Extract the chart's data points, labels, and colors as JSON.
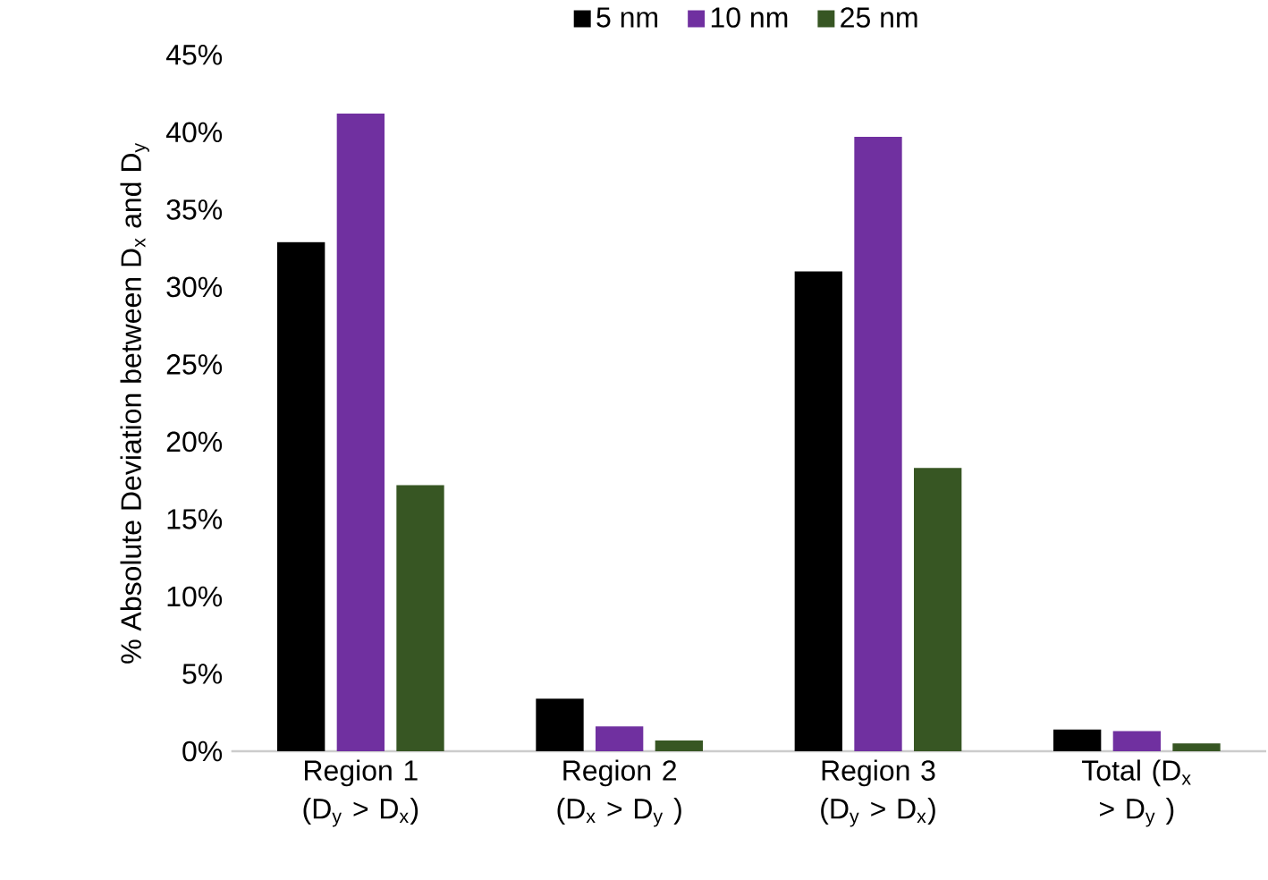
{
  "chart_data": {
    "type": "bar",
    "ylabel": "% Absolute Deviation between D$_{x}$ and D$_{y}$",
    "categories": [
      "Region 1 (D$_{y}$ > D$_{x}$)",
      "Region 2 (D$_{x}$ > D$_{y}$ )",
      "Region 3 (D$_{y}$ > D$_{x}$)",
      "Total (D$_{x}$ > D$_{y}$ )"
    ],
    "series": [
      {
        "name": "5 nm",
        "color": "#000000",
        "values": [
          32.9,
          3.4,
          31.0,
          1.4
        ]
      },
      {
        "name": "10 nm",
        "color": "#7030a0",
        "values": [
          41.2,
          1.6,
          39.7,
          1.3
        ]
      },
      {
        "name": "25 nm",
        "color": "#375623",
        "values": [
          17.2,
          0.7,
          18.3,
          0.5
        ]
      }
    ],
    "ylim": [
      0,
      45
    ],
    "yticks": [
      {
        "value": 0,
        "label": "0%"
      },
      {
        "value": 5,
        "label": "5%"
      },
      {
        "value": 10,
        "label": "10%"
      },
      {
        "value": 15,
        "label": "15%"
      },
      {
        "value": 20,
        "label": "20%"
      },
      {
        "value": 25,
        "label": "25%"
      },
      {
        "value": 30,
        "label": "30%"
      },
      {
        "value": 35,
        "label": "35%"
      },
      {
        "value": 40,
        "label": "40%"
      },
      {
        "value": 45,
        "label": "45%"
      }
    ],
    "grid": false,
    "legend": "top"
  }
}
